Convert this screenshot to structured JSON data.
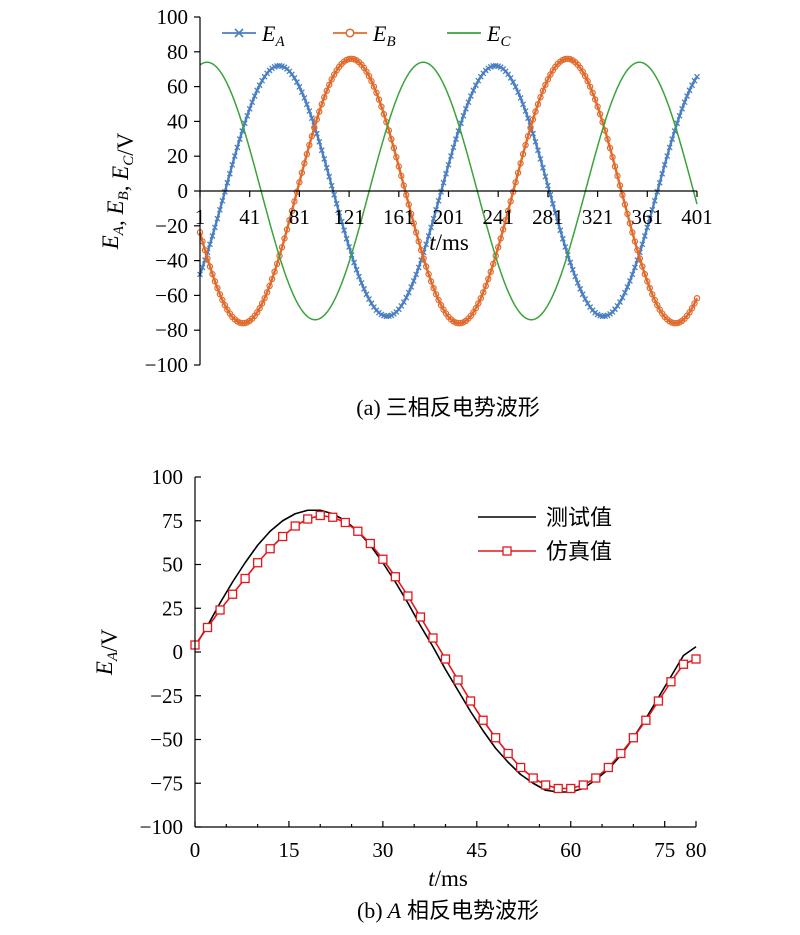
{
  "figure": {
    "caption_a": {
      "label": "(a)",
      "text": "三相反电势波形"
    },
    "caption_b": {
      "label": "(b)",
      "italic": "A",
      "text": "相反电势波形"
    }
  },
  "chart_data": [
    {
      "id": "a",
      "type": "line",
      "xlabel_italic": "t",
      "xlabel_rest": "/ms",
      "ylabel_parts": [
        {
          "t": "E",
          "sub": "A"
        },
        {
          "t": ", "
        },
        {
          "t": "E",
          "sub": "B"
        },
        {
          "t": ", "
        },
        {
          "t": "E",
          "sub": "C"
        },
        {
          "t": "/V"
        }
      ],
      "xlim": [
        1,
        401
      ],
      "ylim": [
        -100,
        100
      ],
      "x_ticks": [
        1,
        41,
        81,
        121,
        161,
        201,
        241,
        281,
        321,
        361,
        401
      ],
      "y_ticks": [
        -100,
        -80,
        -60,
        -40,
        -20,
        0,
        20,
        40,
        60,
        80,
        100
      ],
      "legend_position": "top",
      "series": [
        {
          "name_main": "E",
          "name_sub": "A",
          "color": "#4a7fc1",
          "marker": "x",
          "amplitude": 72,
          "phase_deg": -120,
          "period_ms": 174
        },
        {
          "name_main": "E",
          "name_sub": "B",
          "color": "#e06b2c",
          "marker": "o",
          "amplitude": 76,
          "phase_deg": 120,
          "period_ms": 174
        },
        {
          "name_main": "E",
          "name_sub": "C",
          "color": "#3aa33a",
          "marker": "none",
          "amplitude": 74,
          "phase_deg": 0,
          "period_ms": 174
        }
      ]
    },
    {
      "id": "b",
      "type": "line",
      "xlabel_italic": "t",
      "xlabel_rest": "/ms",
      "ylabel_parts": [
        {
          "t": "E",
          "sub": "A"
        },
        {
          "t": "/V"
        }
      ],
      "xlim": [
        0,
        80
      ],
      "ylim": [
        -100,
        100
      ],
      "x_ticks": [
        0,
        15,
        30,
        45,
        60,
        75,
        80
      ],
      "y_ticks": [
        -100,
        -75,
        -50,
        -25,
        0,
        25,
        50,
        75,
        100
      ],
      "legend_position": "top-right",
      "series": [
        {
          "name": "测试值",
          "color": "#000000",
          "marker": "none",
          "x": [
            0,
            2,
            4,
            6,
            8,
            10,
            12,
            14,
            16,
            18,
            20,
            22,
            24,
            26,
            28,
            30,
            32,
            34,
            36,
            38,
            40,
            42,
            44,
            46,
            48,
            50,
            52,
            54,
            56,
            58,
            60,
            62,
            64,
            66,
            68,
            70,
            72,
            74,
            76,
            78,
            80
          ],
          "values": [
            3,
            15,
            28,
            40,
            51,
            61,
            69,
            75,
            79,
            81,
            81,
            79,
            75,
            69,
            61,
            51,
            40,
            28,
            15,
            3,
            -10,
            -22,
            -34,
            -45,
            -55,
            -63,
            -70,
            -75,
            -79,
            -80,
            -80,
            -78,
            -73,
            -67,
            -59,
            -49,
            -38,
            -26,
            -14,
            -2,
            3
          ]
        },
        {
          "name": "仿真值",
          "color": "#e3161b",
          "marker": "square",
          "x": [
            0,
            2,
            4,
            6,
            8,
            10,
            12,
            14,
            16,
            18,
            20,
            22,
            24,
            26,
            28,
            30,
            32,
            34,
            36,
            38,
            40,
            42,
            44,
            46,
            48,
            50,
            52,
            54,
            56,
            58,
            60,
            62,
            64,
            66,
            68,
            70,
            72,
            74,
            76,
            78,
            80
          ],
          "values": [
            4,
            14,
            24,
            33,
            42,
            51,
            59,
            66,
            72,
            76,
            78,
            77,
            74,
            69,
            62,
            53,
            43,
            32,
            20,
            8,
            -4,
            -16,
            -28,
            -39,
            -49,
            -58,
            -66,
            -72,
            -76,
            -78,
            -78,
            -76,
            -72,
            -66,
            -58,
            -49,
            -39,
            -28,
            -17,
            -7,
            -4
          ]
        }
      ]
    }
  ]
}
